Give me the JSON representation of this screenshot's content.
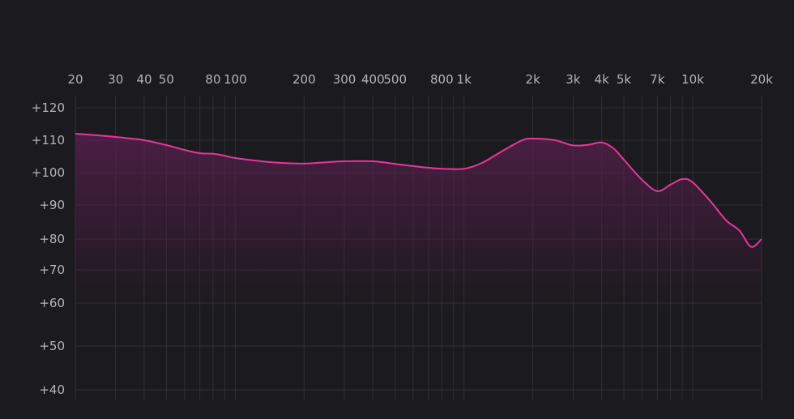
{
  "chart_data": {
    "type": "line",
    "title": "",
    "xlabel": "",
    "ylabel": "",
    "x_scale": "log",
    "xlim": [
      20,
      20000
    ],
    "ylim": [
      40,
      120
    ],
    "grid": true,
    "x_tick_values": [
      20,
      30,
      40,
      50,
      80,
      100,
      200,
      300,
      400,
      500,
      800,
      1000,
      2000,
      3000,
      4000,
      5000,
      7000,
      10000,
      20000
    ],
    "x_tick_labels": [
      "20",
      "30",
      "40",
      "50",
      "80",
      "100",
      "200",
      "300",
      "400",
      "500",
      "800",
      "1k",
      "2k",
      "3k",
      "4k",
      "5k",
      "7k",
      "10k",
      "20k"
    ],
    "x_minor_grid": [
      60,
      70,
      90,
      600,
      700,
      900,
      6000,
      8000,
      9000
    ],
    "y_tick_values": [
      120,
      110,
      100,
      90,
      80,
      70,
      60,
      50,
      40
    ],
    "y_tick_labels": [
      "+120",
      "+110",
      "+100",
      "+90",
      "+80",
      "+70",
      "+60",
      "+50",
      "+40"
    ],
    "line_color": "#e6379b",
    "fill_color": "#5a2050",
    "background": "#1b1b1f",
    "series": [
      {
        "x": [
          20,
          25,
          30,
          35,
          40,
          50,
          60,
          70,
          80,
          90,
          100,
          130,
          160,
          200,
          250,
          300,
          400,
          500,
          600,
          700,
          800,
          1000,
          1200,
          1500,
          1800,
          2000,
          2500,
          3000,
          3500,
          4000,
          4500,
          5000,
          6000,
          7000,
          8000,
          9000,
          10000,
          12000,
          14000,
          16000,
          18000,
          20000
        ],
        "y": [
          112,
          111.5,
          111,
          110.5,
          110,
          108.5,
          107,
          106,
          105.8,
          105.2,
          104.5,
          103.5,
          103,
          102.8,
          103.2,
          103.5,
          103.5,
          102.7,
          102,
          101.5,
          101.2,
          101.2,
          103,
          107,
          110,
          110.5,
          110,
          108.4,
          108.6,
          109.3,
          107.5,
          104,
          97.8,
          94.3,
          96.3,
          98,
          97,
          91,
          85.5,
          82.5,
          77.5,
          80
        ]
      }
    ]
  }
}
